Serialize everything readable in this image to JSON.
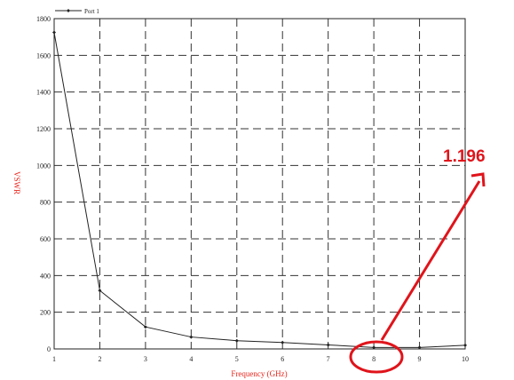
{
  "chart_data": {
    "type": "line",
    "x": [
      1,
      2,
      3,
      4,
      5,
      6,
      7,
      8,
      9,
      10
    ],
    "series": [
      {
        "name": "Port 1",
        "values": [
          1725,
          318,
          120,
          65,
          45,
          35,
          22,
          8,
          8,
          20
        ]
      }
    ],
    "xlabel": "Frequency (GHz)",
    "ylabel": "VSWR",
    "xlim": [
      1,
      10
    ],
    "ylim": [
      0,
      1800
    ],
    "xticks": [
      "1",
      "2",
      "3",
      "4",
      "5",
      "6",
      "7",
      "8",
      "9",
      "10"
    ],
    "yticks": [
      "0",
      "200",
      "400",
      "600",
      "800",
      "1000",
      "1200",
      "1400",
      "1600",
      "1800"
    ],
    "grid": true,
    "legend": "top-left",
    "annotation": {
      "text": "1.196",
      "target_x": 8
    },
    "colors": {
      "series": "#222222",
      "annotation": "#e0141b",
      "axis_title": "#e8251c",
      "grid": "#333333"
    }
  }
}
